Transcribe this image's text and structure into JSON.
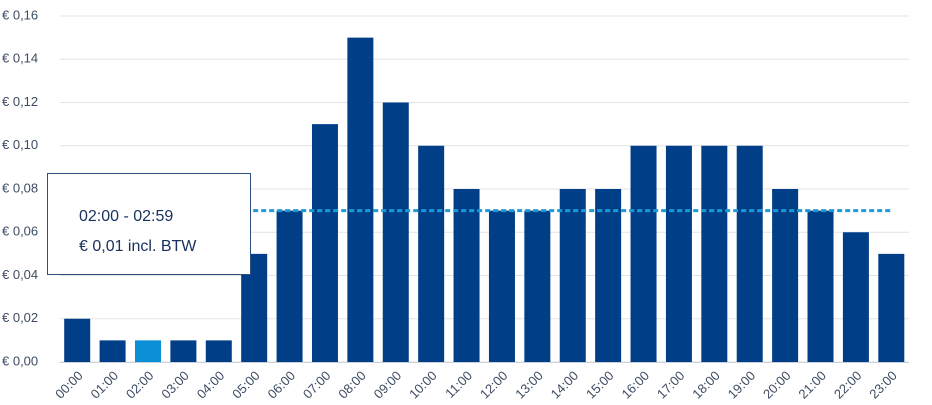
{
  "chart_data": {
    "type": "bar",
    "categories": [
      "00:00",
      "01:00",
      "02:00",
      "03:00",
      "04:00",
      "05:00",
      "06:00",
      "07:00",
      "08:00",
      "09:00",
      "10:00",
      "11:00",
      "12:00",
      "13:00",
      "14:00",
      "15:00",
      "16:00",
      "17:00",
      "18:00",
      "19:00",
      "20:00",
      "21:00",
      "22:00",
      "23:00"
    ],
    "values": [
      0.02,
      0.01,
      0.01,
      0.01,
      0.01,
      0.05,
      0.07,
      0.11,
      0.15,
      0.12,
      0.1,
      0.08,
      0.07,
      0.07,
      0.08,
      0.08,
      0.1,
      0.1,
      0.1,
      0.1,
      0.08,
      0.07,
      0.06,
      0.05
    ],
    "color": "#003f87",
    "highlight_color": "#0a8fd6",
    "highlighted": 2,
    "ylim": [
      0,
      0.16
    ],
    "yticks": [
      {
        "value": 0,
        "label": "€ 0,00"
      },
      {
        "value": 0.02,
        "label": "€ 0,02"
      },
      {
        "value": 0.04,
        "label": "€ 0,04"
      },
      {
        "value": 0.06,
        "label": "€ 0,06"
      },
      {
        "value": 0.08,
        "label": "€ 0,08"
      },
      {
        "value": 0.1,
        "label": "€ 0,10"
      },
      {
        "value": 0.12,
        "label": "€ 0,12"
      },
      {
        "value": 0.14,
        "label": "€ 0,14"
      },
      {
        "value": 0.16,
        "label": "€ 0,16"
      }
    ],
    "grid": true,
    "reference_line": {
      "value": 0.07,
      "color": "#1a9bd7"
    },
    "tooltip": {
      "title": "02:00 - 02:59",
      "text": "€ 0,01 incl. BTW"
    }
  }
}
